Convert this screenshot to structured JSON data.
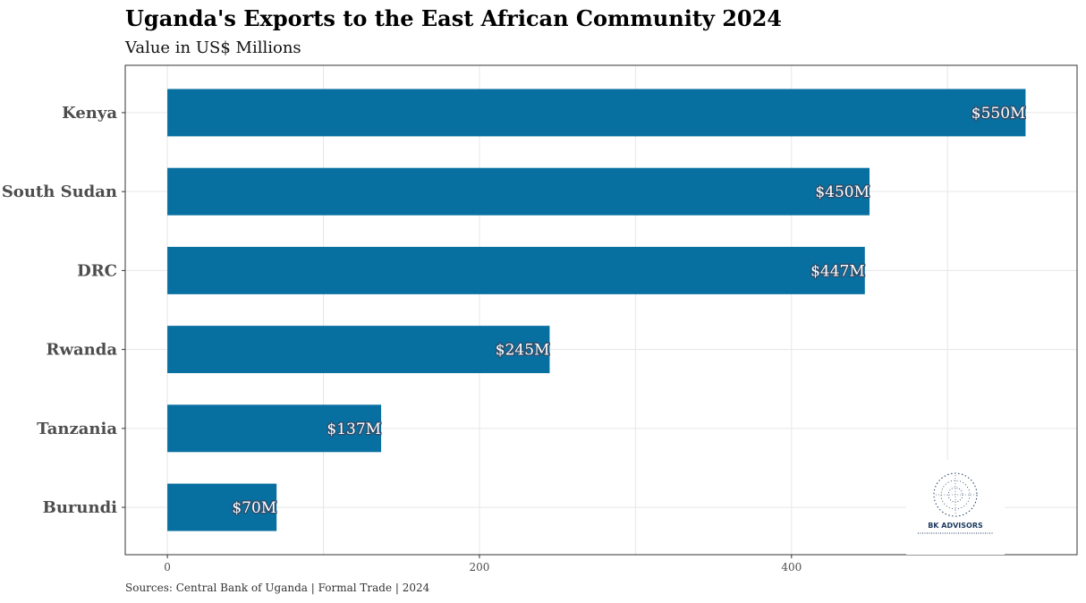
{
  "chart_data": {
    "type": "bar",
    "orientation": "horizontal",
    "title": "Uganda's Exports to the East African Community 2024",
    "subtitle": "Value in US$ Millions",
    "caption": "Sources: Central Bank of Uganda | Formal Trade | 2024",
    "categories": [
      "Kenya",
      "South Sudan",
      "DRC",
      "Rwanda",
      "Tanzania",
      "Burundi"
    ],
    "values": [
      550,
      450,
      447,
      245,
      137,
      70
    ],
    "data_labels": [
      "$550M",
      "$450M",
      "$447M",
      "$245M",
      "$137M",
      "$70M"
    ],
    "xlim": [
      -27,
      583
    ],
    "x_ticks": [
      0,
      200,
      400
    ],
    "x_tick_labels": [
      "0",
      "200",
      "400"
    ],
    "grid": true,
    "bar_color": "#0870a0",
    "label_outline_color": "#2b4f6e"
  },
  "logo": {
    "text": "BK ADVISORS"
  }
}
